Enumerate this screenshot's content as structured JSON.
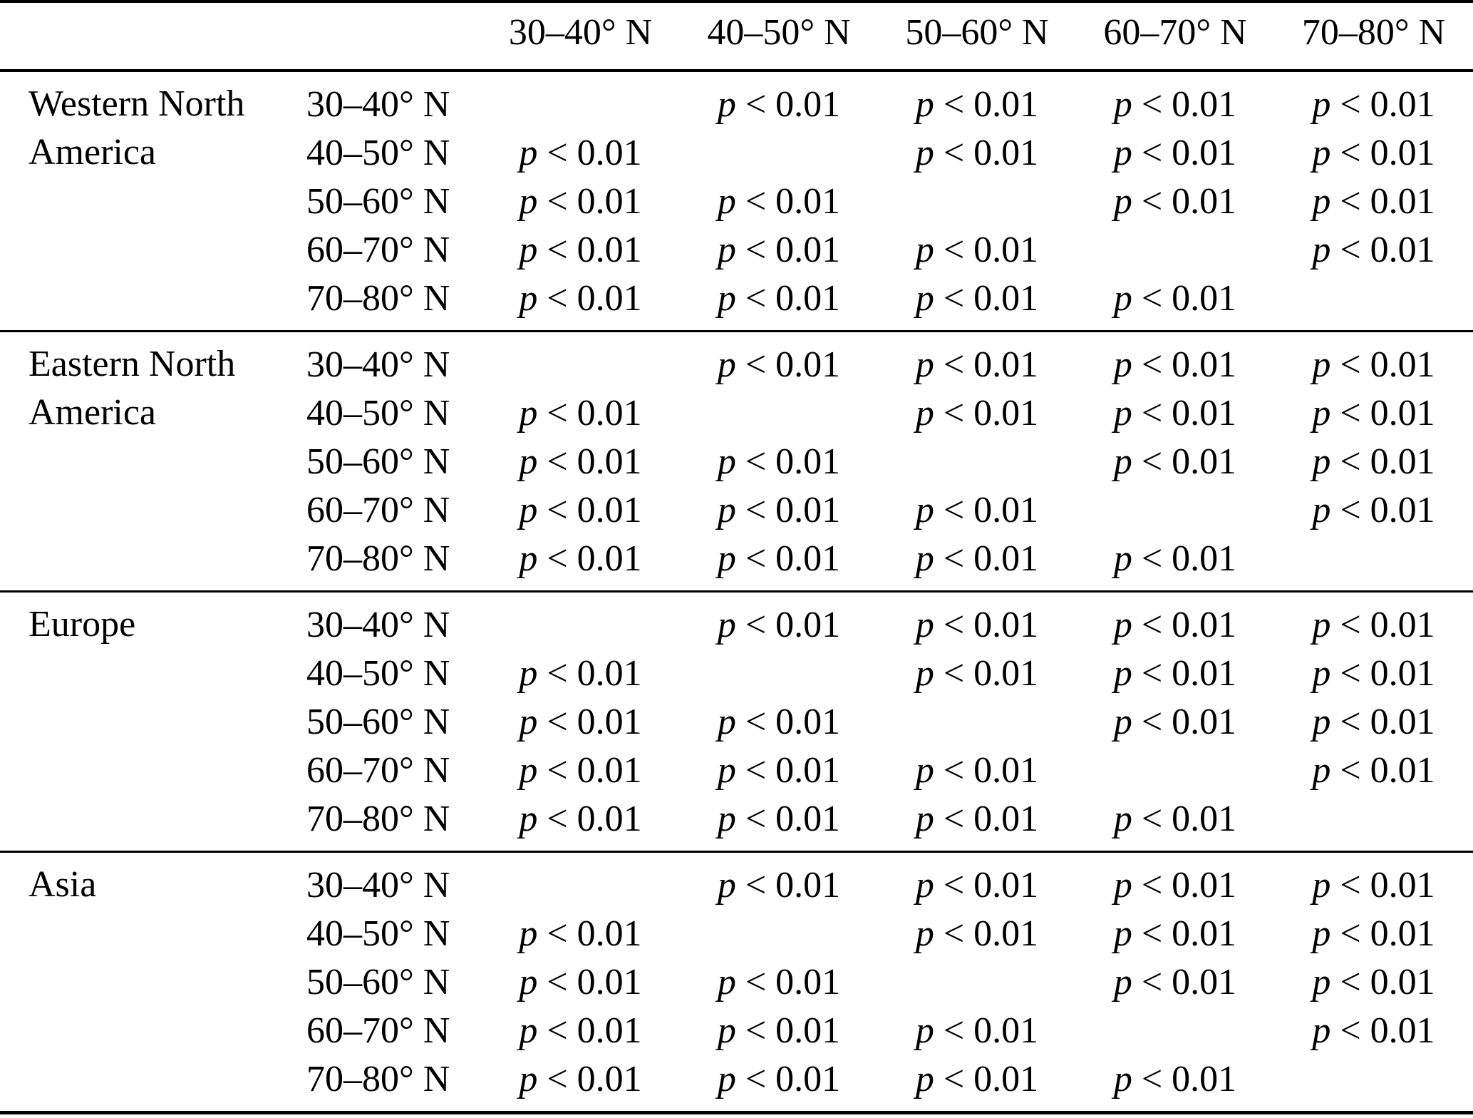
{
  "table": {
    "column_headers": [
      "30–40° N",
      "40–50° N",
      "50–60° N",
      "60–70° N",
      "70–80° N"
    ],
    "row_headers": [
      "30–40° N",
      "40–50° N",
      "50–60° N",
      "60–70° N",
      "70–80° N"
    ],
    "p_value_text": "p < 0.01",
    "cell_markup": {
      "italic": "p",
      "rest": " < 0.01"
    },
    "colors": {
      "text": "#000000",
      "background": "#ffffff",
      "rules": "#000000"
    },
    "regions": [
      {
        "name": "Western North America",
        "name_lines": [
          "Western North",
          "America"
        ],
        "matrix": [
          [
            "",
            "p < 0.01",
            "p < 0.01",
            "p < 0.01",
            "p < 0.01"
          ],
          [
            "p < 0.01",
            "",
            "p < 0.01",
            "p < 0.01",
            "p < 0.01"
          ],
          [
            "p < 0.01",
            "p < 0.01",
            "",
            "p < 0.01",
            "p < 0.01"
          ],
          [
            "p < 0.01",
            "p < 0.01",
            "p < 0.01",
            "",
            "p < 0.01"
          ],
          [
            "p < 0.01",
            "p < 0.01",
            "p < 0.01",
            "p < 0.01",
            ""
          ]
        ]
      },
      {
        "name": "Eastern North America",
        "name_lines": [
          "Eastern North",
          "America"
        ],
        "matrix": [
          [
            "",
            "p < 0.01",
            "p < 0.01",
            "p < 0.01",
            "p < 0.01"
          ],
          [
            "p < 0.01",
            "",
            "p < 0.01",
            "p < 0.01",
            "p < 0.01"
          ],
          [
            "p < 0.01",
            "p < 0.01",
            "",
            "p < 0.01",
            "p < 0.01"
          ],
          [
            "p < 0.01",
            "p < 0.01",
            "p < 0.01",
            "",
            "p < 0.01"
          ],
          [
            "p < 0.01",
            "p < 0.01",
            "p < 0.01",
            "p < 0.01",
            ""
          ]
        ]
      },
      {
        "name": "Europe",
        "name_lines": [
          "Europe"
        ],
        "matrix": [
          [
            "",
            "p < 0.01",
            "p < 0.01",
            "p < 0.01",
            "p < 0.01"
          ],
          [
            "p < 0.01",
            "",
            "p < 0.01",
            "p < 0.01",
            "p < 0.01"
          ],
          [
            "p < 0.01",
            "p < 0.01",
            "",
            "p < 0.01",
            "p < 0.01"
          ],
          [
            "p < 0.01",
            "p < 0.01",
            "p < 0.01",
            "",
            "p < 0.01"
          ],
          [
            "p < 0.01",
            "p < 0.01",
            "p < 0.01",
            "p < 0.01",
            ""
          ]
        ]
      },
      {
        "name": "Asia",
        "name_lines": [
          "Asia"
        ],
        "matrix": [
          [
            "",
            "p < 0.01",
            "p < 0.01",
            "p < 0.01",
            "p < 0.01"
          ],
          [
            "p < 0.01",
            "",
            "p < 0.01",
            "p < 0.01",
            "p < 0.01"
          ],
          [
            "p < 0.01",
            "p < 0.01",
            "",
            "p < 0.01",
            "p < 0.01"
          ],
          [
            "p < 0.01",
            "p < 0.01",
            "p < 0.01",
            "",
            "p < 0.01"
          ],
          [
            "p < 0.01",
            "p < 0.01",
            "p < 0.01",
            "p < 0.01",
            ""
          ]
        ]
      }
    ]
  }
}
